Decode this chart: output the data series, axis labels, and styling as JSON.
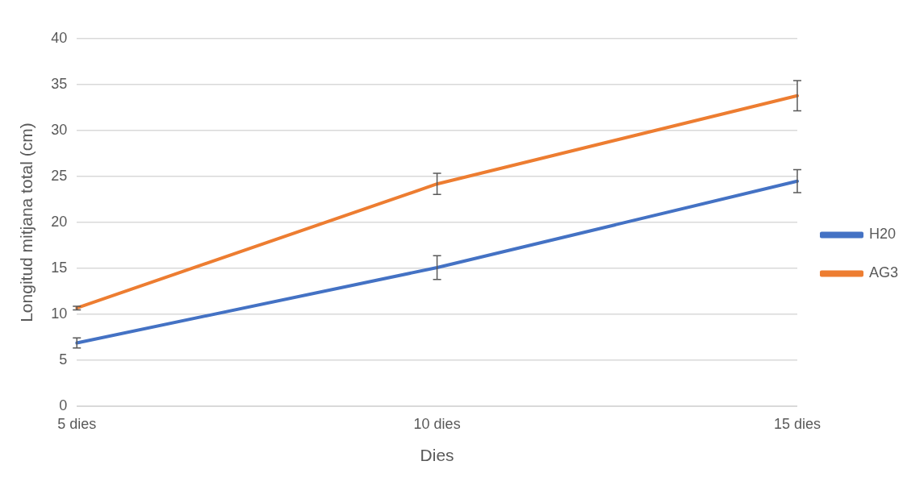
{
  "chart_data": {
    "type": "line",
    "xlabel": "Dies",
    "ylabel": "Longitud mitjana total (cm)",
    "categories": [
      "5 dies",
      "10 dies",
      "15 dies"
    ],
    "series": [
      {
        "name": "H20",
        "color": "#4472c4",
        "values": [
          6.9,
          15.1,
          24.5
        ],
        "errors": [
          0.55,
          1.3,
          1.25
        ]
      },
      {
        "name": "AG3",
        "color": "#ed7d31",
        "values": [
          10.7,
          24.2,
          33.8
        ],
        "errors": [
          0.2,
          1.15,
          1.65
        ]
      }
    ],
    "ylim": [
      0,
      40
    ],
    "yticks": [
      0,
      5,
      10,
      15,
      20,
      25,
      30,
      35,
      40
    ],
    "grid": "y",
    "legend": "right",
    "marker": "none",
    "line_style": "solid"
  }
}
